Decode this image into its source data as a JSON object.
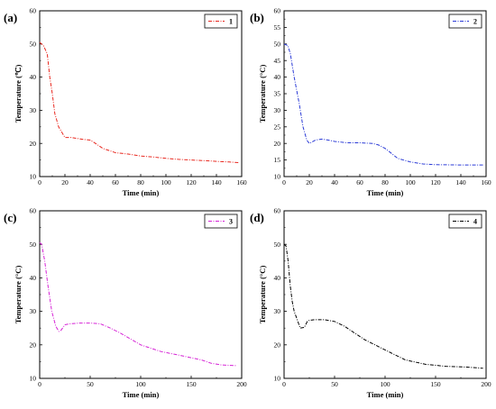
{
  "chart_data": [
    {
      "type": "line",
      "panel_label": "(a)",
      "xlabel": "Time (min)",
      "ylabel": "Temperature (℃)",
      "xlim": [
        0,
        160
      ],
      "ylim": [
        10,
        60
      ],
      "xticks": [
        "0",
        "20",
        "40",
        "60",
        "80",
        "100",
        "120",
        "140",
        "160"
      ],
      "yticks": [
        "10",
        "20",
        "30",
        "40",
        "50",
        "60"
      ],
      "legend_position": "top-right",
      "series": [
        {
          "name": "1",
          "color": "#e8281f",
          "x": [
            0,
            3,
            6,
            8,
            10,
            12,
            15,
            20,
            25,
            30,
            35,
            40,
            43,
            50,
            60,
            70,
            80,
            90,
            100,
            110,
            120,
            130,
            140,
            150,
            158
          ],
          "y": [
            50.5,
            49.5,
            47,
            40,
            35,
            29,
            25,
            21.8,
            21.8,
            21.5,
            21.2,
            21,
            20.3,
            18.5,
            17.2,
            16.8,
            16.2,
            15.9,
            15.5,
            15.2,
            15,
            14.8,
            14.6,
            14.4,
            14.2
          ]
        }
      ]
    },
    {
      "type": "line",
      "panel_label": "(b)",
      "xlabel": "Time (min)",
      "ylabel": "Temperature (°C)",
      "xlim": [
        0,
        160
      ],
      "ylim": [
        10,
        60
      ],
      "xticks": [
        "0",
        "20",
        "40",
        "60",
        "80",
        "100",
        "120",
        "140",
        "160"
      ],
      "yticks": [
        "10",
        "15",
        "20",
        "25",
        "30",
        "35",
        "40",
        "45",
        "50",
        "55",
        "60"
      ],
      "legend_position": "top-right",
      "series": [
        {
          "name": "2",
          "color": "#2a3ad6",
          "x": [
            0,
            3,
            5,
            8,
            12,
            15,
            18,
            20,
            25,
            30,
            35,
            40,
            50,
            60,
            70,
            75,
            80,
            85,
            90,
            100,
            110,
            120,
            140,
            158
          ],
          "y": [
            50,
            49.5,
            47,
            40,
            32,
            25,
            21,
            20,
            21,
            21.3,
            21,
            20.6,
            20.2,
            20.2,
            20,
            19.5,
            18.5,
            17,
            15.5,
            14.4,
            13.8,
            13.6,
            13.5,
            13.5
          ]
        }
      ]
    },
    {
      "type": "line",
      "panel_label": "(c)",
      "xlabel": "Time (min)",
      "ylabel": "Temperature (°C)",
      "xlim": [
        0,
        200
      ],
      "ylim": [
        10,
        60
      ],
      "xticks": [
        "0",
        "50",
        "100",
        "150",
        "200"
      ],
      "yticks": [
        "10",
        "20",
        "30",
        "40",
        "50",
        "60"
      ],
      "legend_position": "top-right",
      "series": [
        {
          "name": "3",
          "color": "#d623d6",
          "x": [
            0,
            2,
            5,
            8,
            12,
            16,
            19,
            21,
            25,
            30,
            40,
            50,
            60,
            70,
            80,
            100,
            120,
            140,
            160,
            170,
            180,
            195
          ],
          "y": [
            50.5,
            50,
            45,
            38,
            30,
            25.5,
            24,
            24.3,
            26,
            26.3,
            26.5,
            26.5,
            26.3,
            25,
            23.5,
            20,
            18,
            16.8,
            15.5,
            14.5,
            14,
            13.8
          ]
        }
      ]
    },
    {
      "type": "line",
      "panel_label": "(d)",
      "xlabel": "Time (min)",
      "ylabel": "Temperature (°C)",
      "xlim": [
        0,
        200
      ],
      "ylim": [
        10,
        60
      ],
      "xticks": [
        "0",
        "50",
        "100",
        "150",
        "200"
      ],
      "yticks": [
        "10",
        "20",
        "30",
        "40",
        "50",
        "60"
      ],
      "legend_position": "top-right",
      "series": [
        {
          "name": "4",
          "color": "#000000",
          "x": [
            0,
            2,
            4,
            6,
            8,
            10,
            13,
            16,
            20,
            23,
            25,
            30,
            40,
            50,
            60,
            70,
            80,
            100,
            120,
            140,
            160,
            180,
            197
          ],
          "y": [
            50,
            49.5,
            45,
            38,
            33,
            30,
            27.5,
            25,
            25.2,
            27,
            27.3,
            27.5,
            27.5,
            27,
            25.5,
            23.5,
            21.5,
            18.5,
            15.5,
            14.2,
            13.6,
            13.4,
            13
          ]
        }
      ]
    }
  ]
}
